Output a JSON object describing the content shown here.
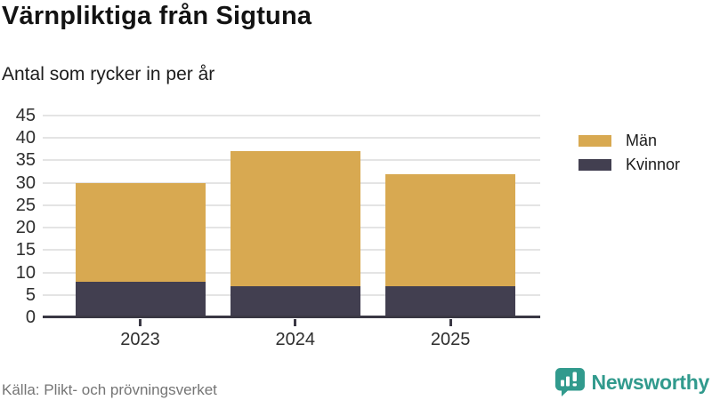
{
  "header": {
    "title": "Värnpliktiga från Sigtuna",
    "subtitle": "Antal som rycker in per år"
  },
  "chart_data": {
    "type": "bar",
    "stacked": true,
    "title": "Värnpliktiga från Sigtuna",
    "subtitle": "Antal som rycker in per år",
    "categories": [
      "2023",
      "2024",
      "2025"
    ],
    "series": [
      {
        "name": "Kvinnor",
        "color": "#423f50",
        "values": [
          8,
          7,
          7
        ]
      },
      {
        "name": "Män",
        "color": "#d8a951",
        "values": [
          22,
          30,
          25
        ]
      }
    ],
    "stack_totals": [
      30,
      37,
      32
    ],
    "ylim": [
      0,
      45
    ],
    "ytick_step": 5,
    "grid": true,
    "legend_position": "right",
    "legend_order": [
      "Män",
      "Kvinnor"
    ]
  },
  "footer": {
    "source": "Källa: Plikt- och prövningsverket",
    "brand": "Newsworthy"
  },
  "colors": {
    "men": "#d8a951",
    "women": "#423f50",
    "brand_teal": "#319a8d",
    "gridline": "#e4e4e4",
    "axis": "#3a3844",
    "source_text": "#757575"
  }
}
